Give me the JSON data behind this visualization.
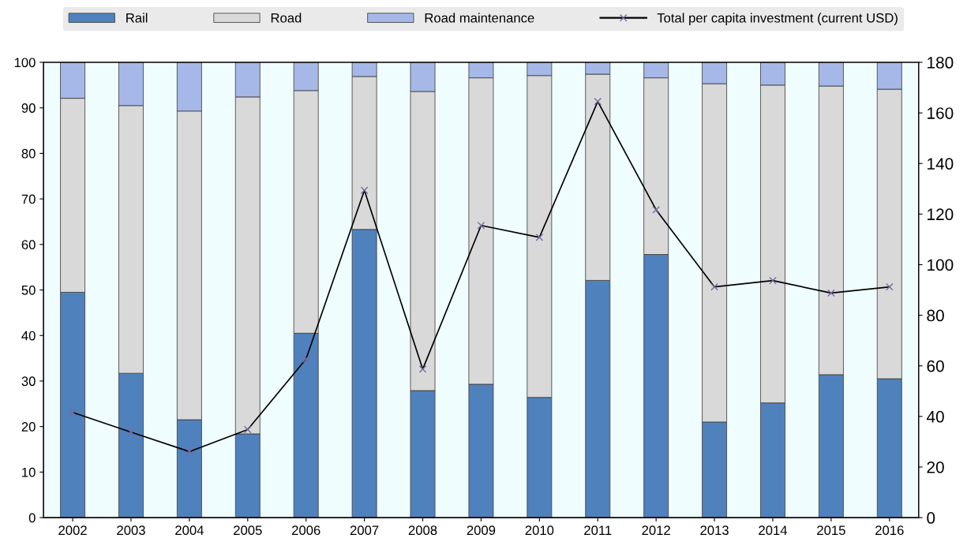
{
  "chart_data": {
    "type": "bar",
    "stacked": true,
    "categories": [
      "2002",
      "2003",
      "2004",
      "2005",
      "2006",
      "2007",
      "2008",
      "2009",
      "2010",
      "2011",
      "2012",
      "2013",
      "2014",
      "2015",
      "2016"
    ],
    "series": [
      {
        "name": "Rail",
        "color": "#4f81bd",
        "values": [
          49.5,
          31.7,
          21.5,
          18.4,
          40.5,
          63.3,
          27.9,
          29.3,
          26.4,
          52.1,
          57.8,
          21.0,
          25.2,
          31.4,
          30.5
        ]
      },
      {
        "name": "Road",
        "color": "#d9d9d9",
        "values": [
          42.6,
          58.8,
          67.8,
          74.0,
          53.3,
          33.6,
          65.7,
          67.3,
          70.7,
          45.3,
          38.8,
          74.3,
          69.8,
          63.4,
          63.6
        ]
      },
      {
        "name": "Road maintenance",
        "color": "#a6b8e8",
        "values": [
          7.9,
          9.5,
          10.7,
          7.6,
          6.2,
          3.1,
          6.4,
          3.4,
          2.9,
          2.6,
          3.4,
          4.7,
          5.0,
          5.2,
          5.9
        ]
      },
      {
        "name": "Total per capita investment (current USD)",
        "type": "line",
        "axis": "y2",
        "color": "#000000",
        "values": [
          41.6,
          33.8,
          26.1,
          34.8,
          62.7,
          129.4,
          58.7,
          115.5,
          110.8,
          164.5,
          121.7,
          91.2,
          93.7,
          88.8,
          91.2
        ]
      }
    ],
    "ylim": [
      0,
      100
    ],
    "yticks": [
      0,
      10,
      20,
      30,
      40,
      50,
      60,
      70,
      80,
      90,
      100
    ],
    "y2lim": [
      0,
      180
    ],
    "y2ticks": [
      0,
      20,
      40,
      60,
      80,
      100,
      120,
      140,
      160,
      180
    ],
    "marker": "cross",
    "grid": false,
    "legend": "top"
  }
}
